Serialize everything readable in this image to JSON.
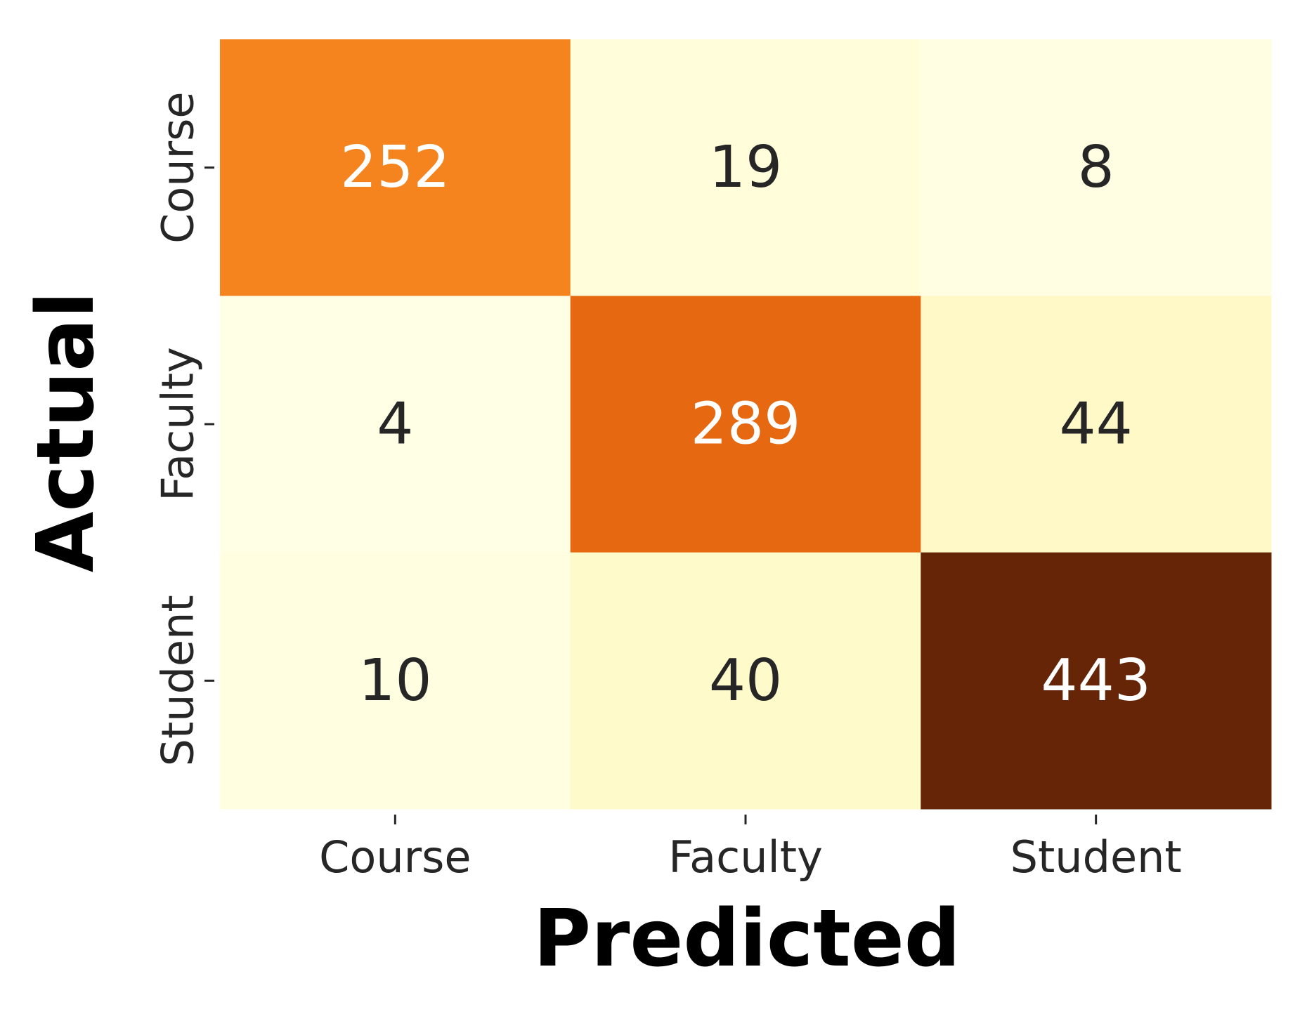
{
  "chart_data": {
    "type": "heatmap",
    "title": "",
    "xlabel": "Predicted",
    "ylabel": "Actual",
    "x_categories": [
      "Course",
      "Faculty",
      "Student"
    ],
    "y_categories": [
      "Course",
      "Faculty",
      "Student"
    ],
    "values": [
      [
        252,
        19,
        8
      ],
      [
        4,
        289,
        44
      ],
      [
        10,
        40,
        443
      ]
    ],
    "colormap": "YlOrBr",
    "color_range": [
      4,
      443
    ],
    "colorbar": false,
    "grid": false
  }
}
